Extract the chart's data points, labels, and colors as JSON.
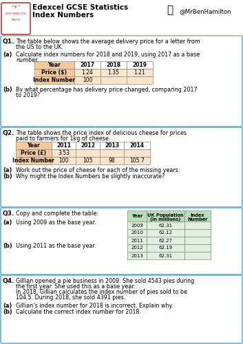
{
  "title_line1": "Edexcel GCSE Statistics",
  "title_line2": "Index Numbers",
  "twitter": "@MrBenHamilton",
  "q1_text1": "The table below shows the average delivery price for a letter from",
  "q1_text2": "the US to the UK.",
  "q1a_text1": "Calculate index numbers for 2018 and 2019, using 2017 as a base",
  "q1a_text2": "number.",
  "q1b_text1": "By what percentage has delivery price changed, comparing 2017",
  "q1b_text2": "to 2019?",
  "q1_headers": [
    "Year",
    "2017",
    "2018",
    "2019"
  ],
  "q1_row1": [
    "Price ($)",
    "1.24",
    "1.35",
    "1.21"
  ],
  "q1_row2": [
    "Index Number",
    "100",
    "",
    ""
  ],
  "q2_text1": "The table shows the price index of delicious cheese for prices",
  "q2_text2": "paid to farmers for 1kg of cheese.",
  "q2a_text": "Work out the price of cheese for each of the missing years.",
  "q2b_text": "Why might the Index Numbers be slightly inaccurate?",
  "q2_headers": [
    "Year",
    "2011",
    "2012",
    "2013",
    "2014"
  ],
  "q2_row1": [
    "Price (£)",
    "3.53",
    "",
    "",
    ""
  ],
  "q2_row2": [
    "Index Number",
    "100",
    "105",
    "98",
    "105.7"
  ],
  "q3_text": "Copy and complete the table:",
  "q3a_text": "Using 2009 as the base year.",
  "q3b_text": "Using 2011 as the base year.",
  "q3_headers": [
    "Year",
    "UK Population\n(in millions)",
    "Index\nNumber"
  ],
  "q3_rows": [
    [
      "2009",
      "62.31",
      ""
    ],
    [
      "2010",
      "62.12",
      ""
    ],
    [
      "2011",
      "62.27",
      ""
    ],
    [
      "2012",
      "62.19",
      ""
    ],
    [
      "2013",
      "62.31",
      ""
    ]
  ],
  "q4_text1": "Gillian opened a pie business in 2009. She sold 4543 pies during",
  "q4_text2": "the first year. She used this as a base year.",
  "q4_text3": "In 2018, Gillian calculates the index number of pies sold to be",
  "q4_text4": "104.5. During 2018, she sold 4391 pies.",
  "q4a_text": "Gillian’s index number for 2018 is incorrect. Explain why.",
  "q4b_text": "Calculate the correct index number for 2018.",
  "orange_header": "#f5c99a",
  "orange_light": "#fae5cc",
  "orange_darker": "#f0a060",
  "green_header": "#b8ddb8",
  "green_light": "#dff0df",
  "border_blue": "#6baed6",
  "white": "#ffffff"
}
